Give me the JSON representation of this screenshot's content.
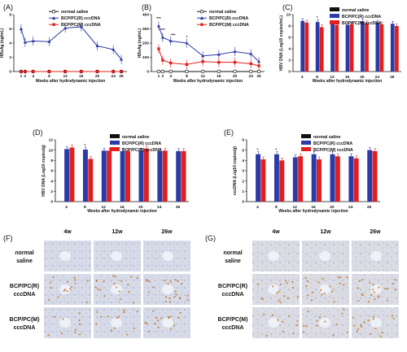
{
  "panels": [
    {
      "letter": "(A)",
      "ylabel": "HBsAg (ng/mL)"
    },
    {
      "letter": "(B)",
      "ylabel": "HBsAg (ng/mL)"
    },
    {
      "letter": "(C)",
      "ylabel": "HBV DNA (Log10 copies/mL)"
    },
    {
      "letter": "(D)",
      "ylabel": "HBV DNA (Log10 copies/g)"
    },
    {
      "letter": "(E)",
      "ylabel": "cccDNA (Log10 copies/g)"
    },
    {
      "letter": "(F)"
    },
    {
      "letter": "(G)"
    }
  ],
  "common": {
    "xlabel": "Weeks after hydrodynamic injection",
    "legend": [
      "normal saline",
      "BCP/PC(R) cccDNA",
      "BCP/PC(M) cccDNA"
    ]
  },
  "colors": {
    "saline": "#111111",
    "R": "#2b3aa6",
    "M": "#e02020"
  },
  "histology": {
    "columns": [
      "4w",
      "12w",
      "26w"
    ],
    "rows": [
      [
        "normal",
        "saline"
      ],
      [
        "BCP/PC(R)",
        "cccDNA"
      ],
      [
        "BCP/PC(M)",
        "cccDNA"
      ]
    ]
  },
  "chart_data": [
    {
      "type": "line",
      "panel": "A",
      "x": [
        1,
        2,
        4,
        8,
        12,
        16,
        20,
        24,
        26
      ],
      "xticks": [
        "1",
        "2",
        "4",
        "8",
        "12",
        "16",
        "20",
        "24",
        "26"
      ],
      "ylabel": "HBsAg (ng/mL)",
      "ylim": [
        0,
        8
      ],
      "yticks": [
        0,
        2,
        4,
        6,
        8
      ],
      "series": [
        {
          "name": "normal saline",
          "values": [
            0,
            0,
            0,
            0,
            0,
            0,
            0,
            0,
            0
          ]
        },
        {
          "name": "BCP/PC(R) cccDNA",
          "values": [
            6.0,
            4.1,
            4.3,
            4.2,
            6.1,
            6.3,
            3.6,
            3.1,
            1.7
          ]
        },
        {
          "name": "BCP/PC(M) cccDNA",
          "values": [
            0,
            0,
            0,
            0,
            0,
            0,
            0,
            0,
            0
          ]
        }
      ]
    },
    {
      "type": "line",
      "panel": "B",
      "x": [
        1,
        2,
        4,
        8,
        12,
        16,
        20,
        24,
        26
      ],
      "xticks": [
        "1",
        "2",
        "4",
        "8",
        "12",
        "16",
        "20",
        "24",
        "26"
      ],
      "ylabel": "HBsAg (ng/mL)",
      "ylim": [
        0,
        400
      ],
      "yticks": [
        0,
        100,
        200,
        300,
        400
      ],
      "series": [
        {
          "name": "normal saline",
          "values": [
            0,
            0,
            0,
            0,
            0,
            0,
            0,
            0,
            0
          ]
        },
        {
          "name": "BCP/PC(R) cccDNA",
          "values": [
            320,
            240,
            215,
            200,
            110,
            120,
            140,
            125,
            70
          ]
        },
        {
          "name": "BCP/PC(M) cccDNA",
          "values": [
            160,
            80,
            60,
            50,
            70,
            65,
            65,
            55,
            40
          ]
        }
      ],
      "annotations": [
        "***",
        "***",
        "***",
        "*"
      ]
    },
    {
      "type": "bar",
      "panel": "C",
      "categories": [
        "4",
        "8",
        "12",
        "16",
        "20",
        "24",
        "26"
      ],
      "ylabel": "HBV DNA (Log10 copies/mL)",
      "ylim": [
        0,
        10
      ],
      "yticks": [
        0,
        2,
        4,
        6,
        8,
        10
      ],
      "series": [
        {
          "name": "normal saline",
          "values": [
            0,
            0,
            0,
            0,
            0,
            0,
            0
          ]
        },
        {
          "name": "BCP/PC(R) cccDNA",
          "values": [
            8.9,
            8.7,
            8.4,
            8.2,
            8.8,
            8.6,
            8.4
          ]
        },
        {
          "name": "BCP/PC(M) cccDNA",
          "values": [
            8.6,
            7.8,
            8.2,
            8.3,
            8.5,
            8.3,
            8.0
          ]
        }
      ],
      "annotations": [
        "*"
      ]
    },
    {
      "type": "bar",
      "panel": "D",
      "categories": [
        "4",
        "8",
        "12",
        "16",
        "20",
        "24",
        "26"
      ],
      "ylabel": "HBV DNA (Log10 copies/g)",
      "ylim": [
        0,
        12
      ],
      "yticks": [
        0,
        2,
        4,
        6,
        8,
        10,
        12
      ],
      "series": [
        {
          "name": "normal saline",
          "values": [
            0,
            0,
            0,
            0,
            0,
            0,
            0
          ]
        },
        {
          "name": "BCP/PC(R) cccDNA",
          "values": [
            10.2,
            10.1,
            9.9,
            9.8,
            9.9,
            9.8,
            9.8
          ]
        },
        {
          "name": "BCP/PC(M) cccDNA",
          "values": [
            10.5,
            8.3,
            9.9,
            9.8,
            10.3,
            9.9,
            9.8
          ]
        }
      ],
      "annotations": [
        "*"
      ]
    },
    {
      "type": "bar",
      "panel": "E",
      "categories": [
        "4",
        "8",
        "12",
        "16",
        "20",
        "24",
        "26"
      ],
      "ylabel": "cccDNA (Log10 copies/g)",
      "ylim": [
        0,
        6
      ],
      "yticks": [
        0,
        1,
        2,
        3,
        4,
        5,
        6
      ],
      "series": [
        {
          "name": "normal saline",
          "values": [
            0,
            0,
            0,
            0,
            0,
            0,
            0
          ]
        },
        {
          "name": "BCP/PC(R) cccDNA",
          "values": [
            4.6,
            4.6,
            4.3,
            4.6,
            4.6,
            4.4,
            5.0
          ]
        },
        {
          "name": "BCP/PC(M) cccDNA",
          "values": [
            4.1,
            4.0,
            4.4,
            4.1,
            4.4,
            4.2,
            4.9
          ]
        }
      ],
      "annotations": [
        "*",
        "*"
      ]
    }
  ]
}
